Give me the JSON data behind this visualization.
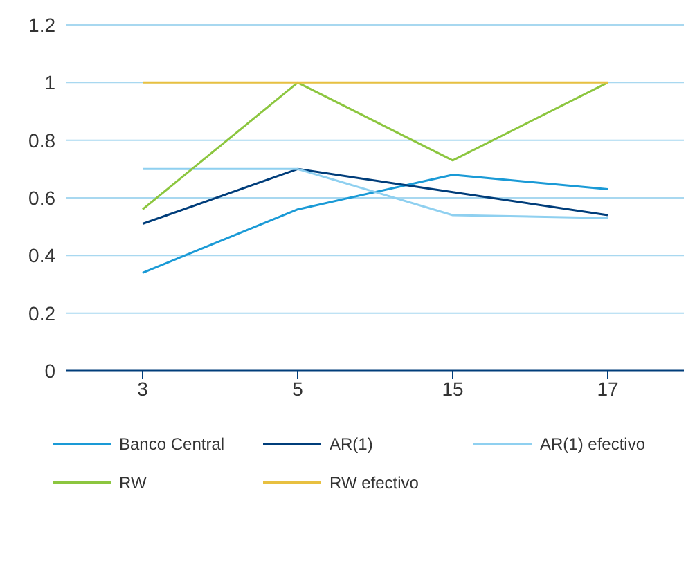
{
  "chart_data": {
    "type": "line",
    "categories": [
      "3",
      "5",
      "15",
      "17"
    ],
    "series": [
      {
        "name": "Banco Central",
        "color": "#1a9ad6",
        "values": [
          0.34,
          0.56,
          0.68,
          0.63
        ]
      },
      {
        "name": "AR(1)",
        "color": "#003d7a",
        "values": [
          0.51,
          0.7,
          0.62,
          0.54
        ]
      },
      {
        "name": "AR(1) efectivo",
        "color": "#8fd0f0",
        "values": [
          0.7,
          0.7,
          0.54,
          0.53
        ]
      },
      {
        "name": "RW",
        "color": "#8cc63f",
        "values": [
          0.56,
          1,
          0.73,
          1
        ]
      },
      {
        "name": "RW efectivo",
        "color": "#e8c040",
        "values": [
          1,
          1,
          1,
          1
        ]
      }
    ],
    "ylim": [
      0,
      1.2
    ],
    "yticks": [
      0,
      0.2,
      0.4,
      0.6,
      0.8,
      1,
      1.2
    ],
    "grid": "y",
    "legend": "bottom",
    "marker": "none",
    "line_style": "solid"
  }
}
